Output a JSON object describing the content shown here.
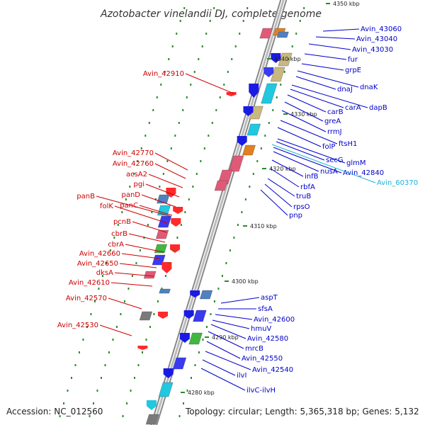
{
  "title": "Azotobacter vinelandii DJ, complete genome",
  "footer": {
    "accession_label": "Accession:",
    "accession": "NC_012560",
    "topology_text": "Topology: circular; Length: 5,365,318 bp; Genes: 5,132"
  },
  "colors": {
    "left_label": "#cc0000",
    "right_label": "#0000cc",
    "cyan_label": "#19b3d8",
    "backbone": "#888888",
    "ticks": "#2a8a2a"
  },
  "scale_ticks": [
    "4350 kbp",
    "4340 kbp",
    "4330 kbp",
    "4320 kbp",
    "4310 kbp",
    "4300 kbp",
    "4290 kbp",
    "4280 kbp"
  ],
  "left_labels": [
    "Avin_42910",
    "Avin_42770",
    "Avin_42760",
    "acsA2",
    "pgi",
    "panD",
    "panC",
    "panB",
    "folK",
    "pcnB",
    "cbrB",
    "cbrA",
    "Avin_42660",
    "Avin_42650",
    "dksA",
    "Avin_42610",
    "Avin_42570",
    "Avin_42530"
  ],
  "right_labels": [
    "Avin_43060",
    "Avin_43040",
    "Avin_43030",
    "fur",
    "grpE",
    "dnaK",
    "dnaJ",
    "dapB",
    "carA",
    "carB",
    "greA",
    "rrmJ",
    "ftsH1",
    "folP",
    "glmM",
    "secG",
    "Avin_42840",
    "nusA",
    "infB",
    "Avin_60370",
    "rbfA",
    "truB",
    "rpsO",
    "pnp",
    "aspT",
    "sfsA",
    "Avin_42600",
    "hmuV",
    "Avin_42580",
    "mrcB",
    "Avin_42550",
    "Avin_42540",
    "ilvI",
    "ilvC-ilvH"
  ]
}
